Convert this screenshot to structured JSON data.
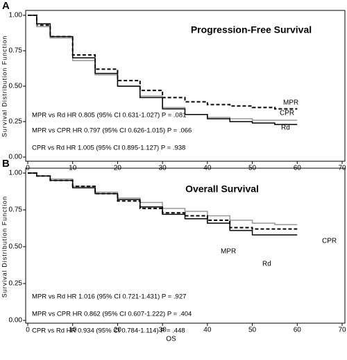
{
  "chart_data": [
    {
      "type": "line",
      "panel": "A",
      "title": "Progression-Free Survival",
      "ylabel": "Survival Distribution Function",
      "x": [
        0,
        2,
        5,
        10,
        15,
        20,
        25,
        30,
        35,
        40,
        45,
        50,
        55,
        60
      ],
      "series": [
        {
          "name": "MPR",
          "color": "#000000",
          "dash": true,
          "values": [
            1.0,
            0.93,
            0.85,
            0.72,
            0.62,
            0.54,
            0.47,
            0.42,
            0.39,
            0.37,
            0.36,
            0.35,
            0.34,
            0.34
          ]
        },
        {
          "name": "CPR",
          "color": "#999999",
          "dash": false,
          "values": [
            1.0,
            0.92,
            0.84,
            0.68,
            0.58,
            0.5,
            0.43,
            0.35,
            0.3,
            0.28,
            0.27,
            0.26,
            0.26,
            0.26
          ]
        },
        {
          "name": "Rd",
          "color": "#000000",
          "dash": false,
          "values": [
            1.0,
            0.94,
            0.85,
            0.7,
            0.59,
            0.5,
            0.42,
            0.34,
            0.3,
            0.27,
            0.25,
            0.24,
            0.23,
            0.23
          ]
        }
      ],
      "annotations": [
        "MPR vs Rd HR 0.805 (95% CI 0.631-1.027) P = .081",
        "MPR vs CPR HR 0.797 (95% CI 0.626-1.015) P = .066",
        "CPR vs Rd HR 1.005 (95% CI 0.895-1.127) P = .938"
      ],
      "xlim": [
        0,
        70
      ],
      "xticks": [
        0,
        10,
        20,
        30,
        40,
        50,
        60,
        70
      ],
      "ylim": [
        0,
        1
      ],
      "yticks": [
        {
          "value": 0,
          "label": "0.00"
        },
        {
          "value": 0.25,
          "label": "0.25"
        },
        {
          "value": 0.5,
          "label": "0.50"
        },
        {
          "value": 0.75,
          "label": "0.75"
        },
        {
          "value": 1,
          "label": "1.00"
        }
      ]
    },
    {
      "type": "line",
      "panel": "B",
      "title": "Overall Survival",
      "xlabel": "OS",
      "ylabel": "Survival Distribution Function",
      "x": [
        0,
        2,
        5,
        10,
        15,
        20,
        25,
        30,
        35,
        40,
        45,
        50,
        55,
        60
      ],
      "series": [
        {
          "name": "CPR",
          "color": "#999999",
          "dash": false,
          "values": [
            1.0,
            0.98,
            0.96,
            0.91,
            0.87,
            0.83,
            0.8,
            0.76,
            0.74,
            0.71,
            0.68,
            0.66,
            0.65,
            0.65
          ]
        },
        {
          "name": "MPR",
          "color": "#000000",
          "dash": true,
          "values": [
            1.0,
            0.98,
            0.95,
            0.91,
            0.86,
            0.81,
            0.76,
            0.73,
            0.71,
            0.68,
            0.63,
            0.62,
            0.62,
            0.62
          ]
        },
        {
          "name": "Rd",
          "color": "#000000",
          "dash": false,
          "values": [
            1.0,
            0.98,
            0.95,
            0.9,
            0.86,
            0.82,
            0.77,
            0.72,
            0.69,
            0.66,
            0.61,
            0.58,
            0.58,
            0.58
          ]
        }
      ],
      "annotations": [
        "MPR vs Rd HR 1.016 (95% CI 0.721-1.431) P = .927",
        "MPR vs CPR HR 0.862 (95% CI 0.607-1.222) P = .404",
        "CPR vs Rd HR 0.934 (95% CI 0.784-1.114) P = .448"
      ],
      "xlim": [
        0,
        70
      ],
      "xticks": [
        0,
        10,
        20,
        30,
        40,
        50,
        60,
        70
      ],
      "ylim": [
        0,
        1
      ],
      "yticks": [
        {
          "value": 0,
          "label": "0.00"
        },
        {
          "value": 0.25,
          "label": "0.25"
        },
        {
          "value": 0.5,
          "label": "0.50"
        },
        {
          "value": 0.75,
          "label": "0.75"
        },
        {
          "value": 1,
          "label": "1.00"
        }
      ]
    }
  ]
}
